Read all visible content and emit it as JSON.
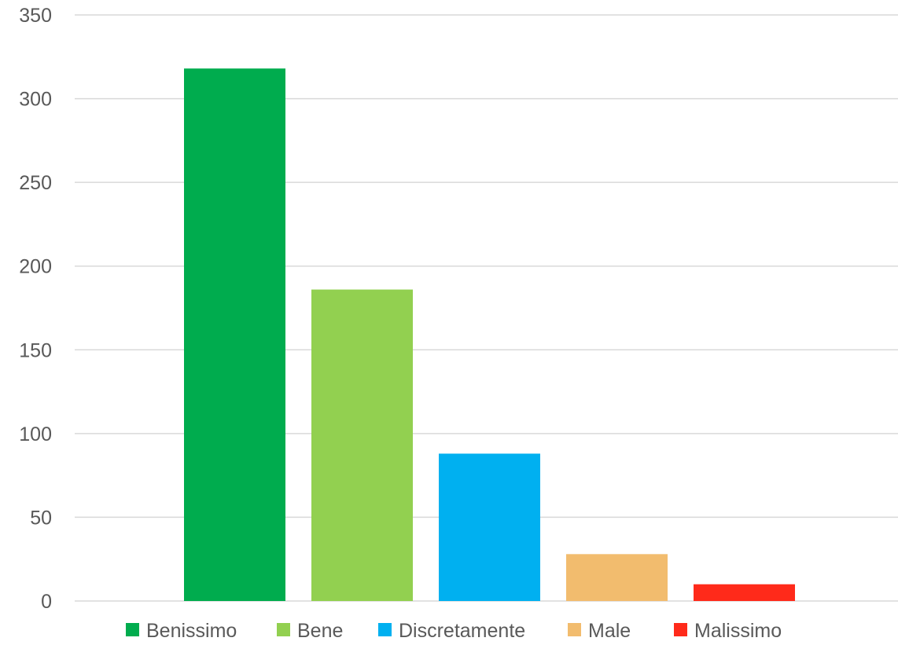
{
  "chart_data": {
    "type": "bar",
    "title": "",
    "xlabel": "",
    "ylabel": "",
    "ylim": [
      0,
      350
    ],
    "yticks": [
      0,
      50,
      100,
      150,
      200,
      250,
      300,
      350
    ],
    "grid": true,
    "legend_position": "bottom",
    "series": [
      {
        "name": "Benissimo",
        "value": 318,
        "color": "#00AC4E"
      },
      {
        "name": "Bene",
        "value": 186,
        "color": "#92D050"
      },
      {
        "name": "Discretamente",
        "value": 88,
        "color": "#00B0F0"
      },
      {
        "name": "Male",
        "value": 28,
        "color": "#F2BC6E"
      },
      {
        "name": "Malissimo",
        "value": 10,
        "color": "#FF2A1A"
      }
    ]
  }
}
